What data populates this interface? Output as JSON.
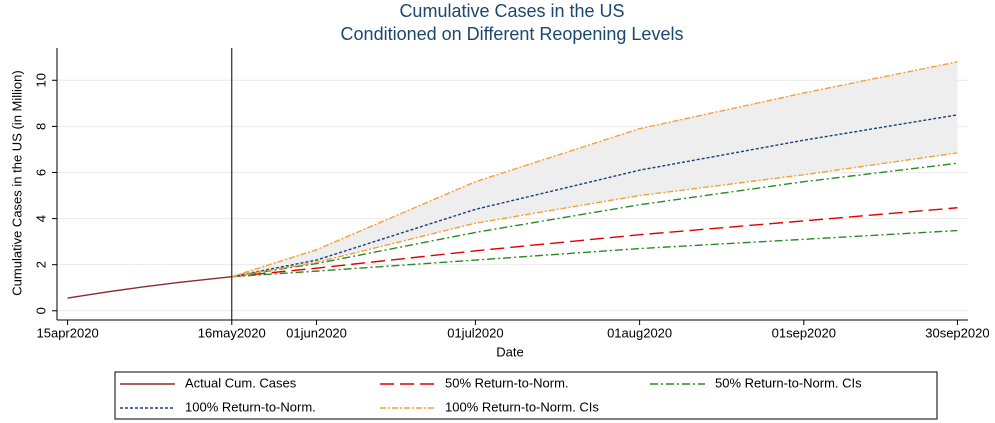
{
  "chart_data": {
    "type": "line",
    "title": "Cumulative Cases in the US",
    "subtitle": "Conditioned on Different Reopening Levels",
    "x_label": "Date",
    "y_label": "Cumulative Cases in the US (in Million)",
    "xlim": [
      "2020-04-13",
      "2020-10-02"
    ],
    "xticks": [
      {
        "value": "2020-04-15",
        "label": "15apr2020"
      },
      {
        "value": "2020-05-16",
        "label": "16may2020"
      },
      {
        "value": "2020-06-01",
        "label": "01jun2020"
      },
      {
        "value": "2020-07-01",
        "label": "01jul2020"
      },
      {
        "value": "2020-08-01",
        "label": "01aug2020"
      },
      {
        "value": "2020-09-01",
        "label": "01sep2020"
      },
      {
        "value": "2020-09-30",
        "label": "30sep2020"
      }
    ],
    "ylim": [
      -0.4,
      11.4
    ],
    "yticks": [
      0,
      2,
      4,
      6,
      8,
      10
    ],
    "grid": true,
    "vline": "2020-05-16",
    "series": [
      {
        "name": "Actual Cum. Cases",
        "color": "#8b2c2c",
        "dash": "none",
        "x": [
          "2020-04-15",
          "2020-04-22",
          "2020-04-29",
          "2020-05-06",
          "2020-05-16"
        ],
        "values": [
          0.55,
          0.8,
          1.03,
          1.23,
          1.48
        ]
      },
      {
        "name": "50% Return-to-Norm.",
        "color": "#e00000",
        "dash": "14 6",
        "x": [
          "2020-05-16",
          "2020-06-01",
          "2020-07-01",
          "2020-08-01",
          "2020-09-01",
          "2020-09-30"
        ],
        "values": [
          1.48,
          1.85,
          2.6,
          3.3,
          3.9,
          4.47
        ]
      },
      {
        "name": "50% Return-to-Norm. CIs",
        "color": "#2a8a2a",
        "dash": "8 3 2 3",
        "x": [
          "2020-05-16",
          "2020-06-01",
          "2020-07-01",
          "2020-08-01",
          "2020-09-01",
          "2020-09-30"
        ],
        "values": [
          1.48,
          1.72,
          2.2,
          2.7,
          3.1,
          3.48
        ],
        "upper": [
          1.48,
          2.05,
          3.4,
          4.6,
          5.6,
          6.4
        ]
      },
      {
        "name": "100% Return-to-Norm.",
        "color": "#1a3f7a",
        "dash": "3 2",
        "x": [
          "2020-05-16",
          "2020-06-01",
          "2020-07-01",
          "2020-08-01",
          "2020-09-01",
          "2020-09-30"
        ],
        "values": [
          1.48,
          2.2,
          4.4,
          6.1,
          7.4,
          8.5
        ]
      },
      {
        "name": "100% Return-to-Norm. CIs",
        "color": "#f5a03a",
        "dash": "6 2 2 2",
        "band": "#eeeeee",
        "x": [
          "2020-05-16",
          "2020-06-01",
          "2020-07-01",
          "2020-08-01",
          "2020-09-01",
          "2020-09-30"
        ],
        "values": [
          1.48,
          2.1,
          3.8,
          5.0,
          5.9,
          6.85
        ],
        "upper": [
          1.48,
          2.65,
          5.6,
          7.9,
          9.45,
          10.8
        ]
      }
    ]
  }
}
